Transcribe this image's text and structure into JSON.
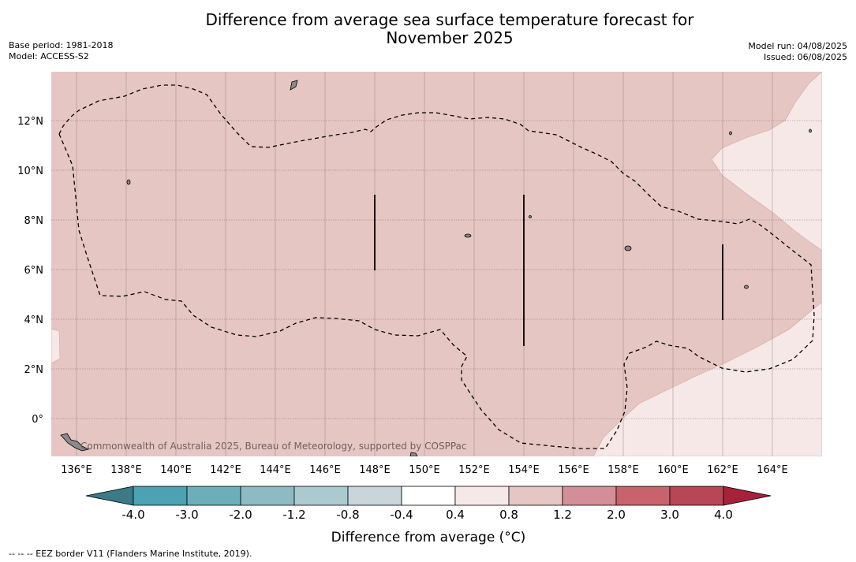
{
  "title": {
    "line1": "Difference from average sea surface temperature forecast for",
    "line2": "November 2025"
  },
  "meta_left": {
    "base_period": "Base period: 1981-2018",
    "model": "Model: ACCESS-S2"
  },
  "meta_right": {
    "model_run": "Model run: 04/08/2025",
    "issued": "Issued: 06/08/2025"
  },
  "map": {
    "lat_ticks": [
      "12°N",
      "10°N",
      "8°N",
      "6°N",
      "4°N",
      "2°N",
      "0°"
    ],
    "lon_ticks": [
      "136°E",
      "138°E",
      "140°E",
      "142°E",
      "144°E",
      "146°E",
      "148°E",
      "150°E",
      "152°E",
      "154°E",
      "156°E",
      "158°E",
      "160°E",
      "162°E",
      "164°E"
    ],
    "copyright": "Commonwealth of Australia 2025, Bureau of Meteorology, supported by COSPPac",
    "fill_colors": {
      "anomaly_0_8_to_1_2": "#e6c6c2",
      "anomaly_0_4_to_0_8": "#f5e8e6"
    }
  },
  "colorbar": {
    "title": "Difference from average (°C)",
    "labels": [
      "-4.0",
      "-3.0",
      "-2.0",
      "-1.2",
      "-0.8",
      "-0.4",
      "0.4",
      "0.8",
      "1.2",
      "2.0",
      "3.0",
      "4.0"
    ],
    "colors": [
      "#3b7a86",
      "#4aa2b3",
      "#6eaebb",
      "#8ebac3",
      "#abcacf",
      "#c8d6db",
      "#ffffff",
      "#f5e8e6",
      "#e6c6c2",
      "#d38e97",
      "#c8636e",
      "#b94656",
      "#a8213b"
    ]
  },
  "footer": "--  --  -- EEZ border V11 (Flanders Marine Institute, 2019)."
}
